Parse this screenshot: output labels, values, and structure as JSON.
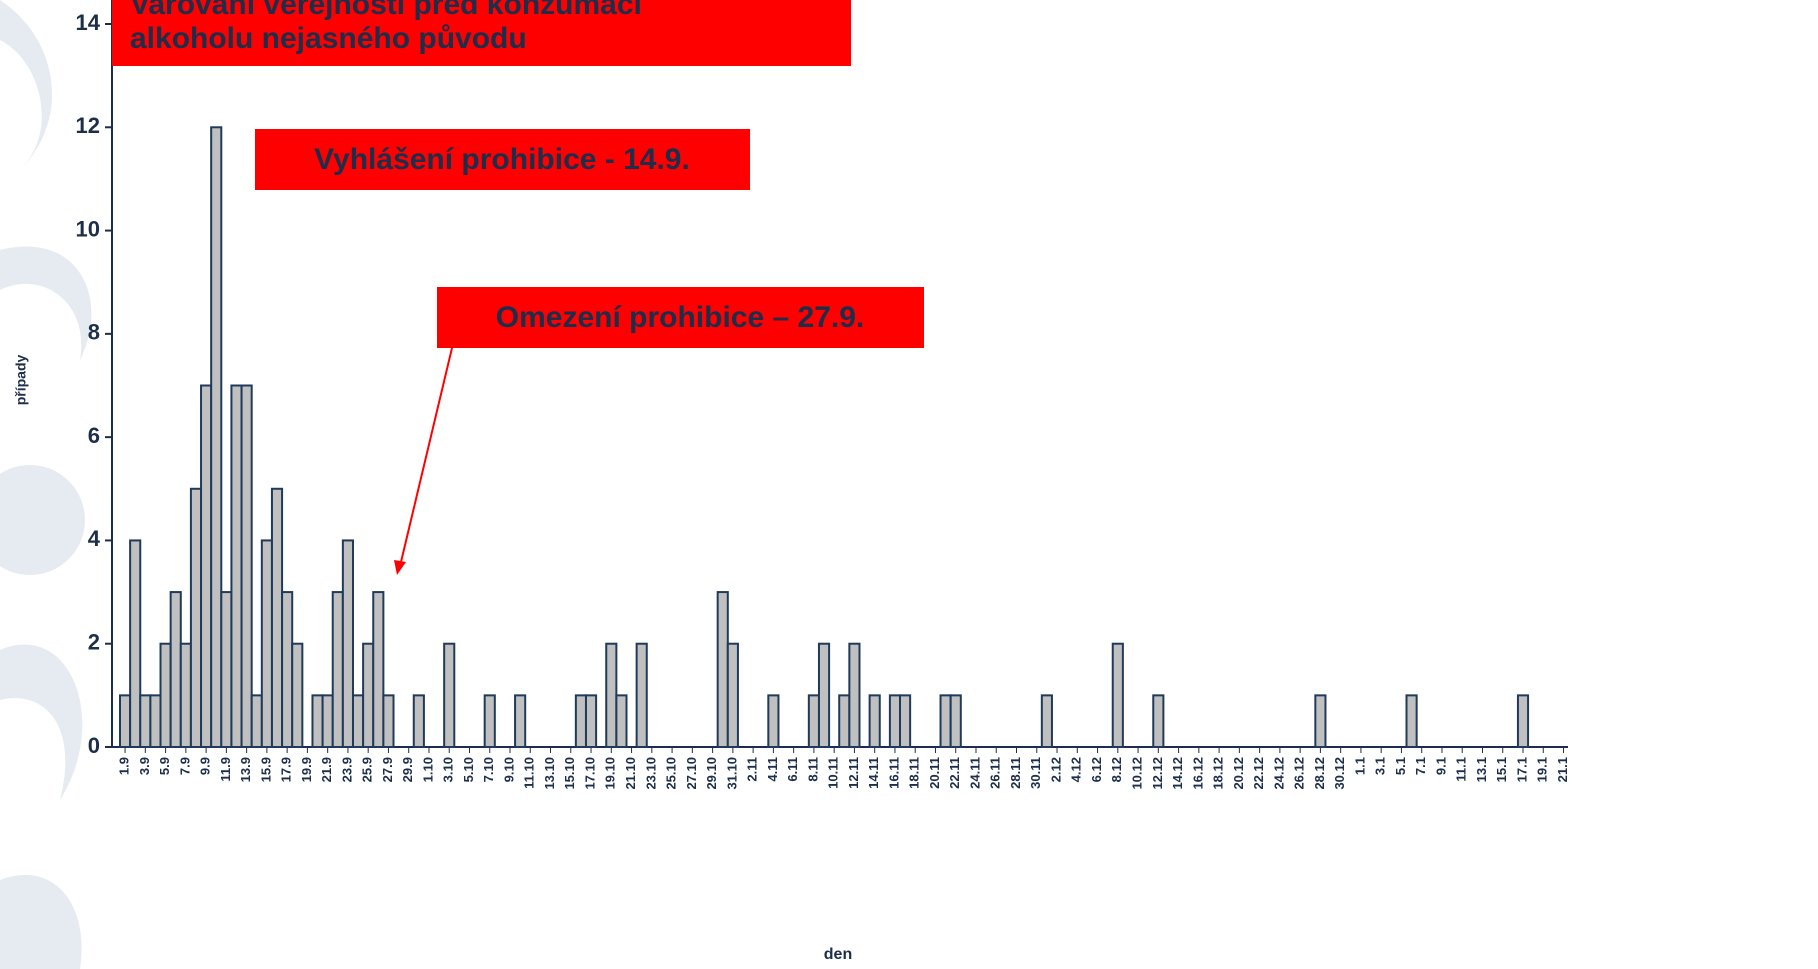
{
  "chart_data": {
    "type": "bar",
    "annotations": [
      "Varování veřejnosti před konzumací",
      "alkoholu nejasného původu",
      "Vyhlášení prohibice - 14.9.",
      "Omezení prohibice – 27.9."
    ],
    "x_label": "den",
    "y_label": "případy",
    "categories": [
      "1.9",
      null,
      "3.9",
      null,
      "5.9",
      null,
      "7.9",
      null,
      "9.9",
      null,
      "11.9",
      null,
      "13.9",
      null,
      "15.9",
      null,
      "17.9",
      null,
      "19.9",
      null,
      "21.9",
      null,
      "23.9",
      null,
      "25.9",
      null,
      "27.9",
      null,
      "29.9",
      null,
      "1.10",
      null,
      "3.10",
      null,
      "5.10",
      null,
      "7.10",
      null,
      "9.10",
      null,
      "11.10",
      null,
      "13.10",
      null,
      "15.10",
      null,
      "17.10",
      null,
      "19.10",
      null,
      "21.10",
      null,
      "23.10",
      null,
      "25.10",
      null,
      "27.10",
      null,
      "29.10",
      null,
      "31.10",
      null,
      "2.11",
      null,
      "4.11",
      null,
      "6.11",
      null,
      "8.11",
      null,
      "10.11",
      null,
      "12.11",
      null,
      "14.11",
      null,
      "16.11",
      null,
      "18.11",
      null,
      "20.11",
      null,
      "22.11",
      null,
      "24.11",
      null,
      "26.11",
      null,
      "28.11",
      null,
      "30.11",
      null,
      "2.12",
      null,
      "4.12",
      null,
      "6.12",
      null,
      "8.12",
      null,
      "10.12",
      null,
      "12.12",
      null,
      "14.12",
      null,
      "16.12",
      null,
      "18.12",
      null,
      "20.12",
      null,
      "22.12",
      null,
      "24.12",
      null,
      "26.12",
      null,
      "28.12",
      null,
      "30.12",
      null,
      "1.1",
      null,
      "3.1",
      null,
      "5.1",
      null,
      "7.1",
      null,
      "9.1",
      null,
      "11.1",
      null,
      "13.1",
      null,
      "15.1",
      null,
      "17.1",
      null,
      "19.1",
      null,
      "21.1"
    ],
    "values": [
      1,
      4,
      1,
      1,
      2,
      3,
      2,
      5,
      7,
      12,
      3,
      7,
      7,
      1,
      4,
      5,
      3,
      2,
      0,
      1,
      1,
      3,
      4,
      1,
      2,
      3,
      1,
      0,
      0,
      1,
      0,
      0,
      2,
      0,
      0,
      0,
      1,
      0,
      0,
      1,
      0,
      0,
      0,
      0,
      0,
      1,
      1,
      0,
      2,
      1,
      0,
      2,
      0,
      0,
      0,
      0,
      0,
      0,
      0,
      3,
      2,
      0,
      0,
      0,
      1,
      0,
      0,
      0,
      1,
      2,
      0,
      1,
      2,
      0,
      1,
      0,
      1,
      1,
      0,
      0,
      0,
      1,
      1,
      0,
      0,
      0,
      0,
      0,
      0,
      0,
      0,
      1,
      0,
      0,
      0,
      0,
      0,
      0,
      2,
      0,
      0,
      0,
      1,
      0,
      0,
      0,
      0,
      0,
      0,
      0,
      0,
      0,
      0,
      0,
      0,
      0,
      0,
      0,
      1,
      0,
      0,
      0,
      0,
      0,
      0,
      0,
      0,
      1,
      0,
      0,
      0,
      0,
      0,
      0,
      0,
      0,
      0,
      0,
      1,
      0,
      0,
      0,
      0
    ],
    "color": "#c0c0c0",
    "edge_color": "#1f3a5a",
    "ylim": [
      0,
      14
    ],
    "yticks": [
      0,
      2,
      4,
      6,
      8,
      10,
      12,
      14
    ]
  }
}
